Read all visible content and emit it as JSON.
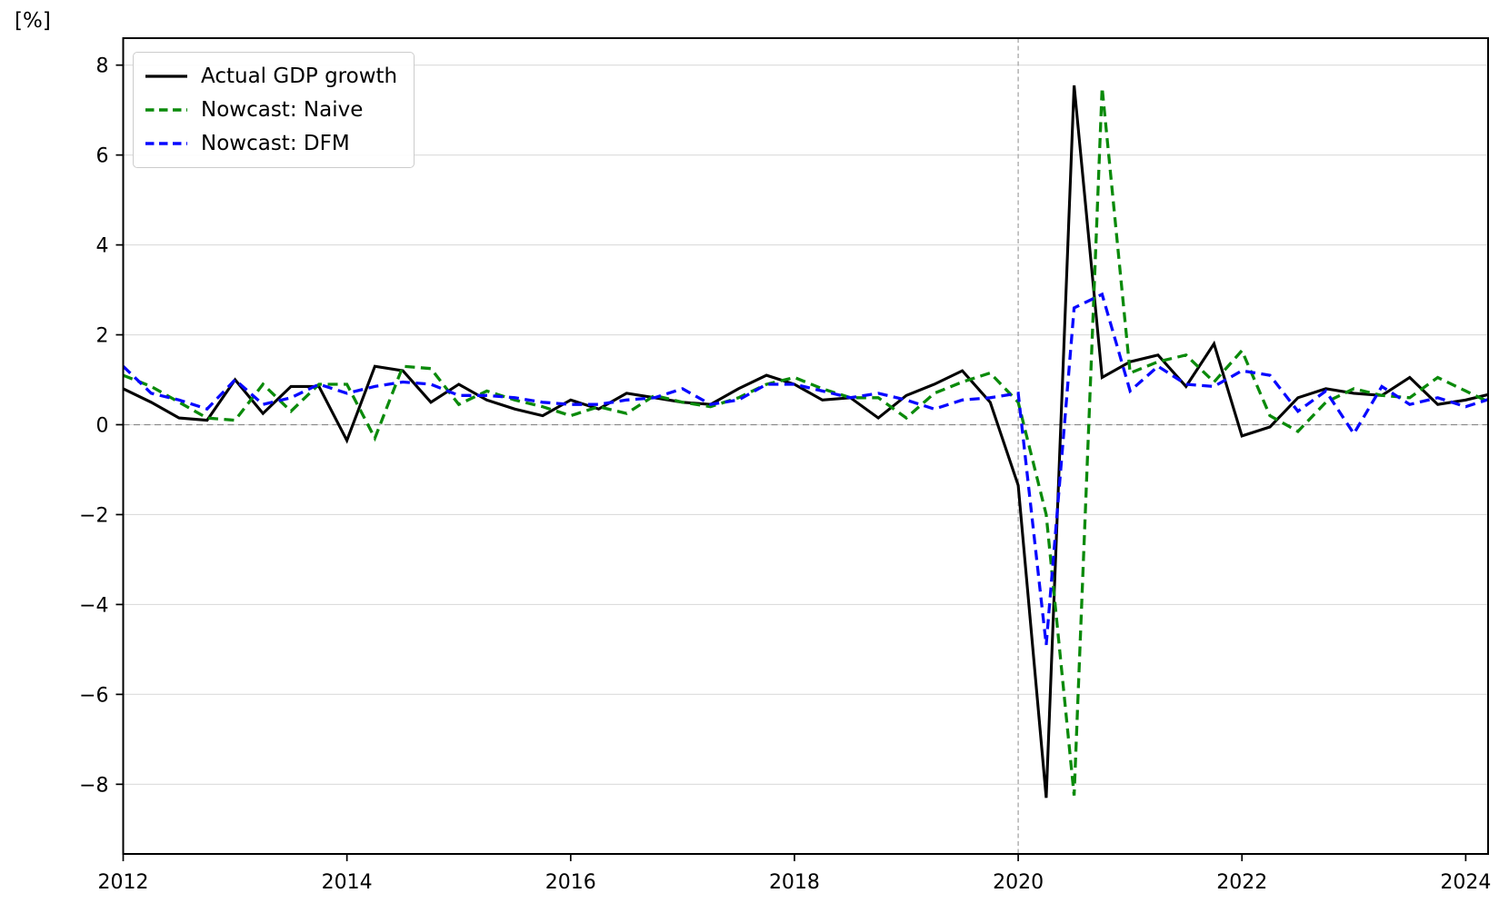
{
  "figure": {
    "y_axis_unit_label": "[%]"
  },
  "chart_data": {
    "type": "line",
    "title": "",
    "xlabel": "",
    "ylabel": "[%]",
    "x_start": 2012.0,
    "x_step": 0.25,
    "x_unit": "year (quarterly data)",
    "xlim": [
      2012.0,
      2024.2
    ],
    "ylim": [
      -9.55,
      8.6
    ],
    "x_ticks": [
      2012,
      2014,
      2016,
      2018,
      2020,
      2022,
      2024
    ],
    "y_ticks": [
      8,
      6,
      4,
      2,
      0,
      -2,
      -4,
      -6,
      -8
    ],
    "y_gridlines": [
      -8,
      -6,
      -4,
      -2,
      0,
      2,
      4,
      6,
      8
    ],
    "grid": "horizontal-light",
    "grid_color": "#dcdcdc",
    "zero_line": {
      "y": 0,
      "style": "dashed",
      "color": "#8c8c8c"
    },
    "vline": {
      "x": 2020,
      "style": "dashed",
      "color": "#a6a6a6"
    },
    "legend_position": "upper left",
    "axis_color": "#000000",
    "series": [
      {
        "name": "Actual GDP growth",
        "color": "#000000",
        "style": "solid",
        "values": [
          0.8,
          0.5,
          0.15,
          0.1,
          1.0,
          0.25,
          0.85,
          0.85,
          -0.35,
          1.3,
          1.2,
          0.5,
          0.9,
          0.55,
          0.35,
          0.2,
          0.55,
          0.35,
          0.7,
          0.6,
          0.5,
          0.45,
          0.8,
          1.1,
          0.9,
          0.55,
          0.6,
          0.15,
          0.65,
          0.9,
          1.2,
          0.5,
          -1.35,
          -8.3,
          7.55,
          1.05,
          1.4,
          1.55,
          0.85,
          1.8,
          -0.25,
          -0.05,
          0.6,
          0.8,
          0.7,
          0.65,
          1.05,
          0.45,
          0.55,
          0.7
        ]
      },
      {
        "name": "Nowcast: Naive",
        "color": "#0a8a0a",
        "style": "dashed",
        "values": [
          1.1,
          0.85,
          0.5,
          0.15,
          0.1,
          0.9,
          0.3,
          0.9,
          0.9,
          -0.3,
          1.3,
          1.25,
          0.45,
          0.75,
          0.55,
          0.4,
          0.2,
          0.4,
          0.25,
          0.65,
          0.5,
          0.4,
          0.6,
          0.9,
          1.05,
          0.8,
          0.6,
          0.6,
          0.15,
          0.7,
          0.95,
          1.15,
          0.5,
          -2.0,
          -8.25,
          7.5,
          1.15,
          1.4,
          1.55,
          0.95,
          1.65,
          0.2,
          -0.15,
          0.5,
          0.8,
          0.65,
          0.6,
          1.05,
          0.75,
          0.45
        ]
      },
      {
        "name": "Nowcast: DFM",
        "color": "#0808ff",
        "style": "dashed",
        "values": [
          1.3,
          0.7,
          0.55,
          0.35,
          1.0,
          0.45,
          0.6,
          0.9,
          0.7,
          0.85,
          0.95,
          0.9,
          0.65,
          0.65,
          0.6,
          0.5,
          0.45,
          0.45,
          0.55,
          0.6,
          0.8,
          0.45,
          0.55,
          0.9,
          0.9,
          0.75,
          0.6,
          0.7,
          0.55,
          0.35,
          0.55,
          0.6,
          0.7,
          -4.9,
          2.6,
          2.9,
          0.75,
          1.3,
          0.9,
          0.85,
          1.2,
          1.1,
          0.3,
          0.75,
          -0.2,
          0.85,
          0.45,
          0.6,
          0.4,
          0.6
        ]
      }
    ]
  }
}
